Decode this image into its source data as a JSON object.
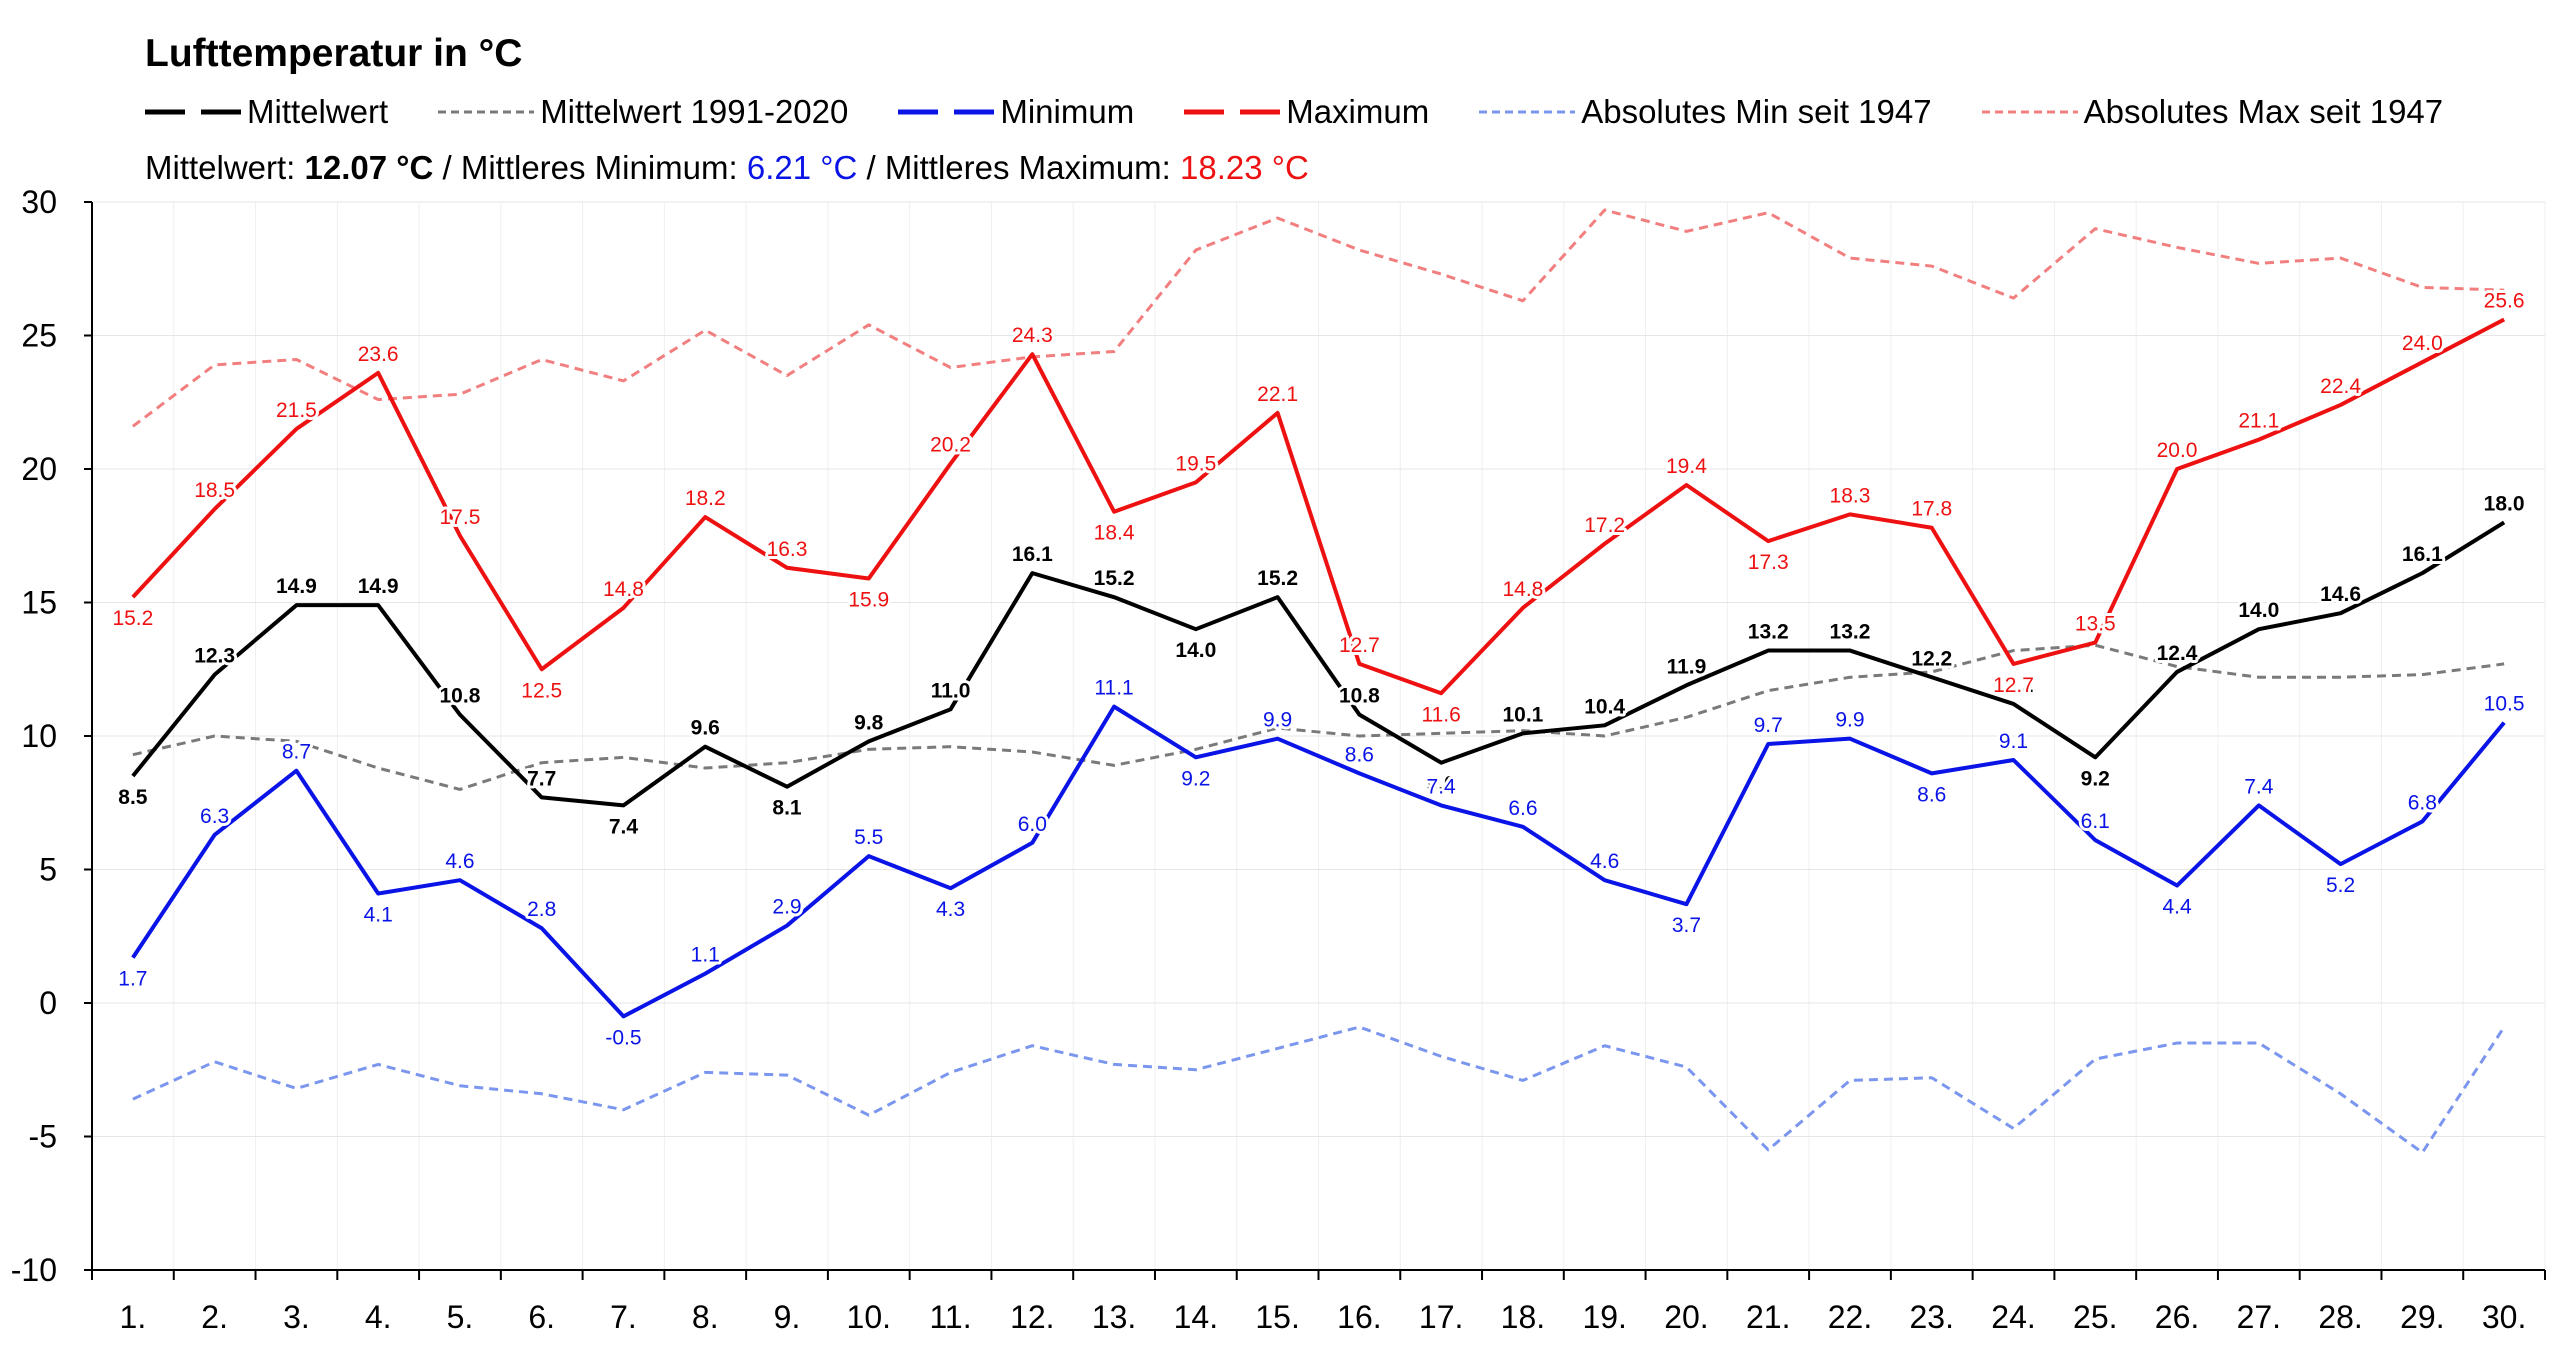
{
  "chart_data": {
    "type": "line",
    "title": "Lufttemperatur in °C",
    "summary": {
      "mean_label": "Mittelwert: ",
      "mean_value": "12.07 °C",
      "sep1": " / ",
      "min_label": "Mittleres Minimum: ",
      "min_value": "6.21 °C",
      "sep2": " / ",
      "max_label": "Mittleres Maximum: ",
      "max_value": "18.23 °C"
    },
    "categories": [
      "1.",
      "2.",
      "3.",
      "4.",
      "5.",
      "6.",
      "7.",
      "8.",
      "9.",
      "10.",
      "11.",
      "12.",
      "13.",
      "14.",
      "15.",
      "16.",
      "17.",
      "18.",
      "19.",
      "20.",
      "21.",
      "22.",
      "23.",
      "24.",
      "25.",
      "26.",
      "27.",
      "28.",
      "29.",
      "30."
    ],
    "ylim": [
      -10,
      30
    ],
    "yticks": [
      30,
      25,
      20,
      15,
      10,
      5,
      0,
      -5,
      -10
    ],
    "grid": true,
    "legend_position": "top",
    "series": [
      {
        "name": "Mittelwert",
        "color": "#000000",
        "style": "solid",
        "width": 4,
        "labels": true,
        "bold": true,
        "values": [
          8.5,
          12.3,
          14.9,
          14.9,
          10.8,
          7.7,
          7.4,
          9.6,
          8.1,
          9.8,
          11.0,
          16.1,
          15.2,
          14.0,
          15.2,
          10.8,
          9.0,
          10.1,
          10.4,
          11.9,
          13.2,
          13.2,
          12.2,
          11.2,
          9.2,
          12.4,
          14.0,
          14.6,
          16.1,
          18.0
        ]
      },
      {
        "name": "Mittelwert 1991-2020",
        "color": "#7a7a7a",
        "style": "dashed",
        "width": 3,
        "labels": false,
        "values": [
          9.3,
          10.0,
          9.8,
          8.8,
          8.0,
          9.0,
          9.2,
          8.8,
          9.0,
          9.5,
          9.6,
          9.4,
          8.9,
          9.5,
          10.3,
          10.0,
          10.1,
          10.2,
          10.0,
          10.7,
          11.7,
          12.2,
          12.4,
          13.2,
          13.4,
          12.6,
          12.2,
          12.2,
          12.3,
          12.7
        ]
      },
      {
        "name": "Minimum",
        "color": "#0a14e6",
        "style": "solid",
        "width": 4,
        "labels": true,
        "bold": false,
        "values": [
          1.7,
          6.3,
          8.7,
          4.1,
          4.6,
          2.8,
          -0.5,
          1.1,
          2.9,
          5.5,
          4.3,
          6.0,
          11.1,
          9.2,
          9.9,
          8.6,
          7.4,
          6.6,
          4.6,
          3.7,
          9.7,
          9.9,
          8.6,
          9.1,
          6.1,
          4.4,
          7.4,
          5.2,
          6.8,
          10.5
        ]
      },
      {
        "name": "Maximum",
        "color": "#ee1111",
        "style": "solid",
        "width": 4,
        "labels": true,
        "bold": false,
        "values": [
          15.2,
          18.5,
          21.5,
          23.6,
          17.5,
          12.5,
          14.8,
          18.2,
          16.3,
          15.9,
          20.2,
          24.3,
          18.4,
          19.5,
          22.1,
          12.7,
          11.6,
          14.8,
          17.2,
          19.4,
          17.3,
          18.3,
          17.8,
          12.7,
          13.5,
          20.0,
          21.1,
          22.4,
          24.0,
          25.6
        ]
      },
      {
        "name": "Absolutes Min seit 1947",
        "color": "#7b96ee",
        "style": "dashed",
        "width": 3,
        "labels": false,
        "values": [
          -3.6,
          -2.2,
          -3.2,
          -2.3,
          -3.1,
          -3.4,
          -4.0,
          -2.6,
          -2.7,
          -4.2,
          -2.6,
          -1.6,
          -2.3,
          -2.5,
          -1.7,
          -0.9,
          -2.0,
          -2.9,
          -1.6,
          -2.4,
          -5.5,
          -2.9,
          -2.8,
          -4.7,
          -2.1,
          -1.5,
          -1.5,
          -3.4,
          -5.6,
          -0.9
        ]
      },
      {
        "name": "Absolutes Max seit 1947",
        "color": "#f27f7f",
        "style": "dashed",
        "width": 3,
        "labels": false,
        "values": [
          21.6,
          23.9,
          24.1,
          22.6,
          22.8,
          24.1,
          23.3,
          25.2,
          23.5,
          25.4,
          23.8,
          24.2,
          24.4,
          28.2,
          29.4,
          28.2,
          27.3,
          26.3,
          29.7,
          28.9,
          29.6,
          27.9,
          27.6,
          26.4,
          29.0,
          28.3,
          27.7,
          27.9,
          26.8,
          26.7
        ]
      }
    ]
  }
}
